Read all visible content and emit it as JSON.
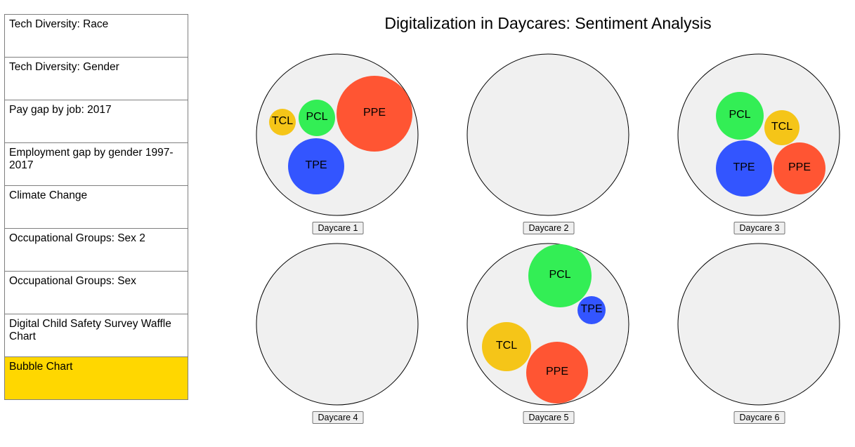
{
  "sidebar": {
    "items": [
      {
        "label": "Tech Diversity: Race",
        "active": false
      },
      {
        "label": "Tech Diversity: Gender",
        "active": false
      },
      {
        "label": "Pay gap by job: 2017",
        "active": false
      },
      {
        "label": "Employment gap by gender 1997-2017",
        "active": false
      },
      {
        "label": "Climate Change",
        "active": false
      },
      {
        "label": "Occupational Groups: Sex 2",
        "active": false
      },
      {
        "label": "Occupational Groups: Sex",
        "active": false
      },
      {
        "label": "Digital Child Safety Survey Waffle Chart",
        "active": false
      },
      {
        "label": "Bubble Chart",
        "active": true
      }
    ]
  },
  "colors": {
    "active_nav": "#ffd700",
    "circle_fill": "#f0f0f0",
    "PPE": "#ff5533",
    "PCL": "#33ee55",
    "TCL": "#f5c518",
    "TPE": "#3355ff"
  },
  "chart_data": {
    "type": "bubble",
    "title": "Digitalization in Daycares: Sentiment Analysis",
    "charts": [
      {
        "label": "Daycare 1",
        "bubbles": [
          {
            "name": "PPE",
            "value": 54
          },
          {
            "name": "TPE",
            "value": 40
          },
          {
            "name": "PCL",
            "value": 26
          },
          {
            "name": "TCL",
            "value": 19
          }
        ]
      },
      {
        "label": "Daycare 2",
        "bubbles": []
      },
      {
        "label": "Daycare 3",
        "bubbles": [
          {
            "name": "TPE",
            "value": 40
          },
          {
            "name": "PPE",
            "value": 37
          },
          {
            "name": "PCL",
            "value": 34
          },
          {
            "name": "TCL",
            "value": 25
          }
        ]
      },
      {
        "label": "Daycare 4",
        "bubbles": []
      },
      {
        "label": "Daycare 5",
        "bubbles": [
          {
            "name": "PCL",
            "value": 45
          },
          {
            "name": "PPE",
            "value": 44
          },
          {
            "name": "TCL",
            "value": 35
          },
          {
            "name": "TPE",
            "value": 20
          }
        ]
      },
      {
        "label": "Daycare 6",
        "bubbles": []
      }
    ]
  }
}
